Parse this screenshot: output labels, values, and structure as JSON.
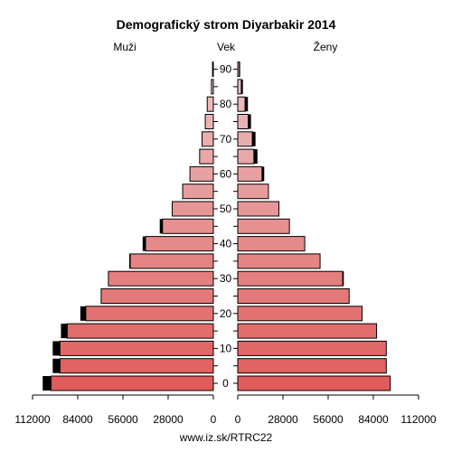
{
  "chart_data": {
    "type": "bar",
    "orientation": "horizontal",
    "title": "Demografický strom Diyarbakir 2014",
    "left_label": "Muži",
    "center_label": "Vek",
    "right_label": "Ženy",
    "source": "www.iz.sk/RTRC22",
    "x_ticks_left": [
      "112000",
      "84000",
      "56000",
      "28000",
      "0"
    ],
    "x_ticks_right": [
      "0",
      "28000",
      "56000",
      "84000",
      "112000"
    ],
    "xlim": [
      0,
      112000
    ],
    "age_ticks": [
      "0",
      "10",
      "20",
      "30",
      "40",
      "50",
      "60",
      "70",
      "80",
      "90"
    ],
    "age_groups": [
      "0-4",
      "5-9",
      "10-14",
      "15-19",
      "20-24",
      "25-29",
      "30-34",
      "35-39",
      "40-44",
      "45-49",
      "50-54",
      "55-59",
      "60-64",
      "65-69",
      "70-74",
      "75-79",
      "80-84",
      "85-89",
      "90-94"
    ],
    "series": [
      {
        "name": "Muži",
        "values": [
          100500,
          95000,
          95000,
          90500,
          79000,
          69500,
          65000,
          51500,
          42000,
          31500,
          25500,
          19000,
          14500,
          8500,
          7000,
          5000,
          3800,
          1200,
          500
        ],
        "excess": [
          5200,
          4500,
          4500,
          3900,
          3400,
          0,
          0,
          600,
          1800,
          1700,
          0,
          0,
          0,
          0,
          0,
          0,
          0,
          0,
          0
        ]
      },
      {
        "name": "Ženy",
        "values": [
          94500,
          92000,
          92000,
          86000,
          77000,
          69000,
          65000,
          51000,
          41500,
          32000,
          25500,
          19000,
          15000,
          10000,
          9000,
          6500,
          4500,
          2200,
          1000
        ],
        "excess": [
          0,
          0,
          0,
          0,
          0,
          0,
          700,
          0,
          0,
          0,
          0,
          0,
          1400,
          2200,
          2000,
          1700,
          1800,
          1000,
          500
        ]
      }
    ],
    "colors": {
      "fill_young": "#e05c5c",
      "fill_old": "#ecc4c4",
      "excess": "#000000",
      "outline": "#000000"
    }
  }
}
